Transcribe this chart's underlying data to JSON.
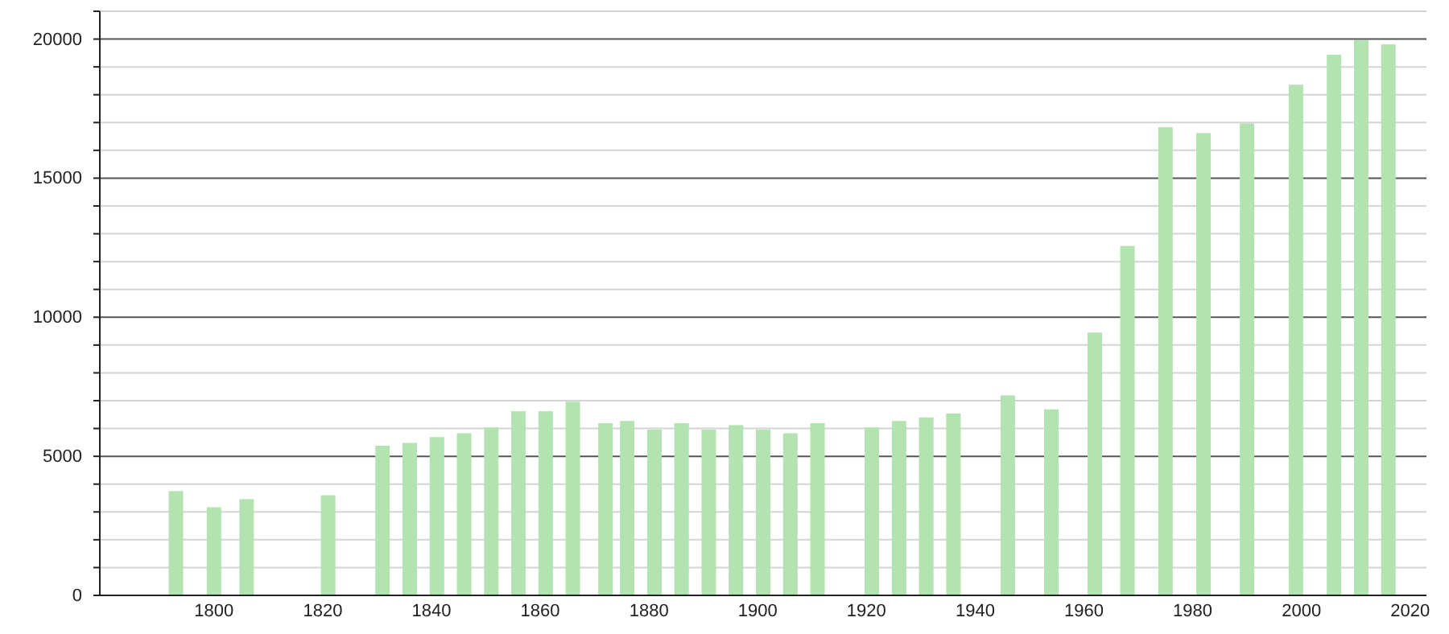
{
  "chart_data": {
    "type": "bar",
    "x": [
      1793,
      1800,
      1806,
      1821,
      1831,
      1836,
      1841,
      1846,
      1851,
      1856,
      1861,
      1866,
      1872,
      1876,
      1881,
      1886,
      1891,
      1896,
      1901,
      1906,
      1911,
      1921,
      1926,
      1931,
      1936,
      1946,
      1954,
      1962,
      1968,
      1975,
      1982,
      1990,
      1999,
      2006,
      2011,
      2016
    ],
    "values": [
      3750,
      3170,
      3460,
      3600,
      5380,
      5480,
      5690,
      5830,
      6040,
      6620,
      6620,
      6960,
      6190,
      6270,
      5960,
      6190,
      5960,
      6120,
      5960,
      5830,
      6190,
      6040,
      6270,
      6400,
      6540,
      7190,
      6690,
      9450,
      12560,
      16830,
      16620,
      16970,
      18360,
      19440,
      19960,
      19810
    ],
    "color": "#b3e3b0",
    "xlim": [
      1779,
      2023
    ],
    "xticks": [
      1800,
      1820,
      1840,
      1860,
      1880,
      1900,
      1920,
      1940,
      1960,
      1980,
      2000,
      2020
    ],
    "ylim": [
      0,
      21000
    ],
    "yticks": [
      0,
      {
        "value": 1000,
        "label": null
      },
      {
        "value": 2000,
        "label": null
      },
      {
        "value": 3000,
        "label": null
      },
      {
        "value": 4000,
        "label": null
      },
      5000,
      {
        "value": 6000,
        "label": null
      },
      {
        "value": 7000,
        "label": null
      },
      {
        "value": 8000,
        "label": null
      },
      {
        "value": 9000,
        "label": null
      },
      10000,
      {
        "value": 11000,
        "label": null
      },
      {
        "value": 12000,
        "label": null
      },
      {
        "value": 13000,
        "label": null
      },
      {
        "value": 14000,
        "label": null
      },
      15000,
      {
        "value": 16000,
        "label": null
      },
      {
        "value": 17000,
        "label": null
      },
      {
        "value": 18000,
        "label": null
      },
      {
        "value": 19000,
        "label": null
      },
      20000,
      {
        "value": 21000,
        "label": null
      }
    ],
    "grid": true
  }
}
